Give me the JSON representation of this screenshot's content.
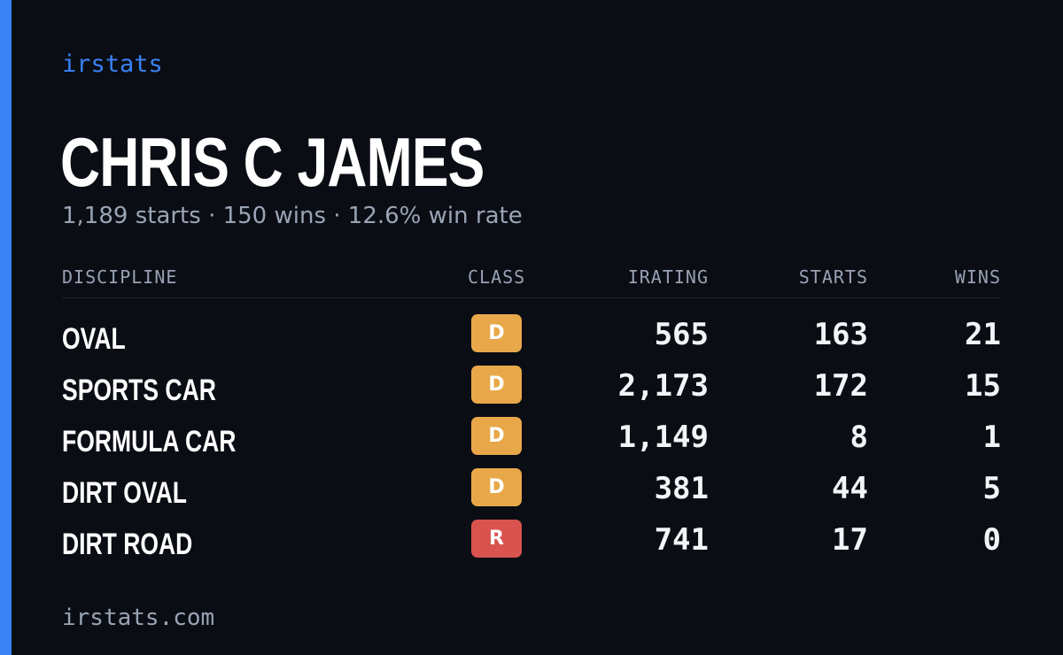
{
  "brand": "irstats",
  "player": {
    "name": "CHRIS C JAMES",
    "summary": "1,189 starts · 150 wins · 12.6% win rate"
  },
  "table": {
    "headers": {
      "discipline": "DISCIPLINE",
      "class": "CLASS",
      "irating": "IRATING",
      "starts": "STARTS",
      "wins": "WINS"
    },
    "rows": [
      {
        "discipline": "OVAL",
        "class": "D",
        "class_color": "#e8a849",
        "irating": "565",
        "starts": "163",
        "wins": "21"
      },
      {
        "discipline": "SPORTS CAR",
        "class": "D",
        "class_color": "#e8a849",
        "irating": "2,173",
        "starts": "172",
        "wins": "15"
      },
      {
        "discipline": "FORMULA CAR",
        "class": "D",
        "class_color": "#e8a849",
        "irating": "1,149",
        "starts": "8",
        "wins": "1"
      },
      {
        "discipline": "DIRT OVAL",
        "class": "D",
        "class_color": "#e8a849",
        "irating": "381",
        "starts": "44",
        "wins": "5"
      },
      {
        "discipline": "DIRT ROAD",
        "class": "R",
        "class_color": "#d9534f",
        "irating": "741",
        "starts": "17",
        "wins": "0"
      }
    ]
  },
  "footer": "irstats.com",
  "colors": {
    "accent": "#3b82f6",
    "background": "#0a0d14"
  }
}
